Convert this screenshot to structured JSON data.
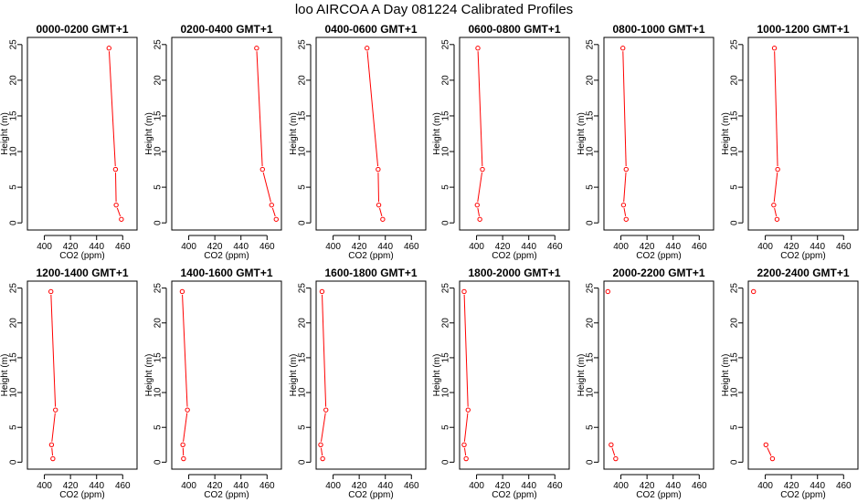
{
  "title": "loo AIRCOA A  Day 081224  Calibrated Profiles",
  "colors": {
    "profile": "#ff0000",
    "axis": "#000000",
    "background": "#ffffff"
  },
  "chart_data": {
    "type": "line",
    "xlabel": "CO2 (ppm)",
    "ylabel": "Height (m)",
    "xlim": [
      387,
      471
    ],
    "ylim": [
      -1,
      26
    ],
    "xticks": [
      400,
      420,
      440,
      460
    ],
    "yticks": [
      0,
      5,
      10,
      15,
      20,
      25
    ],
    "heights": [
      24.5,
      7.5,
      2.5,
      0.5
    ],
    "panels": [
      {
        "title": "0000-0200 GMT+1",
        "co2": [
          449.5,
          454.5,
          455.0,
          459.0
        ]
      },
      {
        "title": "0200-0400 GMT+1",
        "co2": [
          452.0,
          456.5,
          463.5,
          467.0
        ]
      },
      {
        "title": "0400-0600 GMT+1",
        "co2": [
          426.0,
          434.5,
          435.0,
          438.0
        ]
      },
      {
        "title": "0600-0800 GMT+1",
        "co2": [
          401.0,
          404.5,
          400.5,
          402.5
        ]
      },
      {
        "title": "0800-1000 GMT+1",
        "co2": [
          401.5,
          404.0,
          402.0,
          404.0
        ]
      },
      {
        "title": "1000-1200 GMT+1",
        "co2": [
          407.0,
          409.5,
          406.5,
          409.0
        ]
      },
      {
        "title": "1200-1400 GMT+1",
        "co2": [
          405.0,
          408.5,
          405.5,
          406.5
        ]
      },
      {
        "title": "1400-1600 GMT+1",
        "co2": [
          395.0,
          399.0,
          395.5,
          396.0
        ]
      },
      {
        "title": "1600-1800 GMT+1",
        "co2": [
          391.5,
          394.5,
          390.5,
          392.0
        ]
      },
      {
        "title": "1800-2000 GMT+1",
        "co2": [
          390.5,
          393.5,
          390.5,
          392.0
        ]
      },
      {
        "title": "2000-2200 GMT+1",
        "co2": [
          390.0,
          null,
          392.5,
          396.0
        ]
      },
      {
        "title": "2200-2400 GMT+1",
        "co2": [
          391.0,
          null,
          400.5,
          405.5
        ]
      }
    ]
  }
}
